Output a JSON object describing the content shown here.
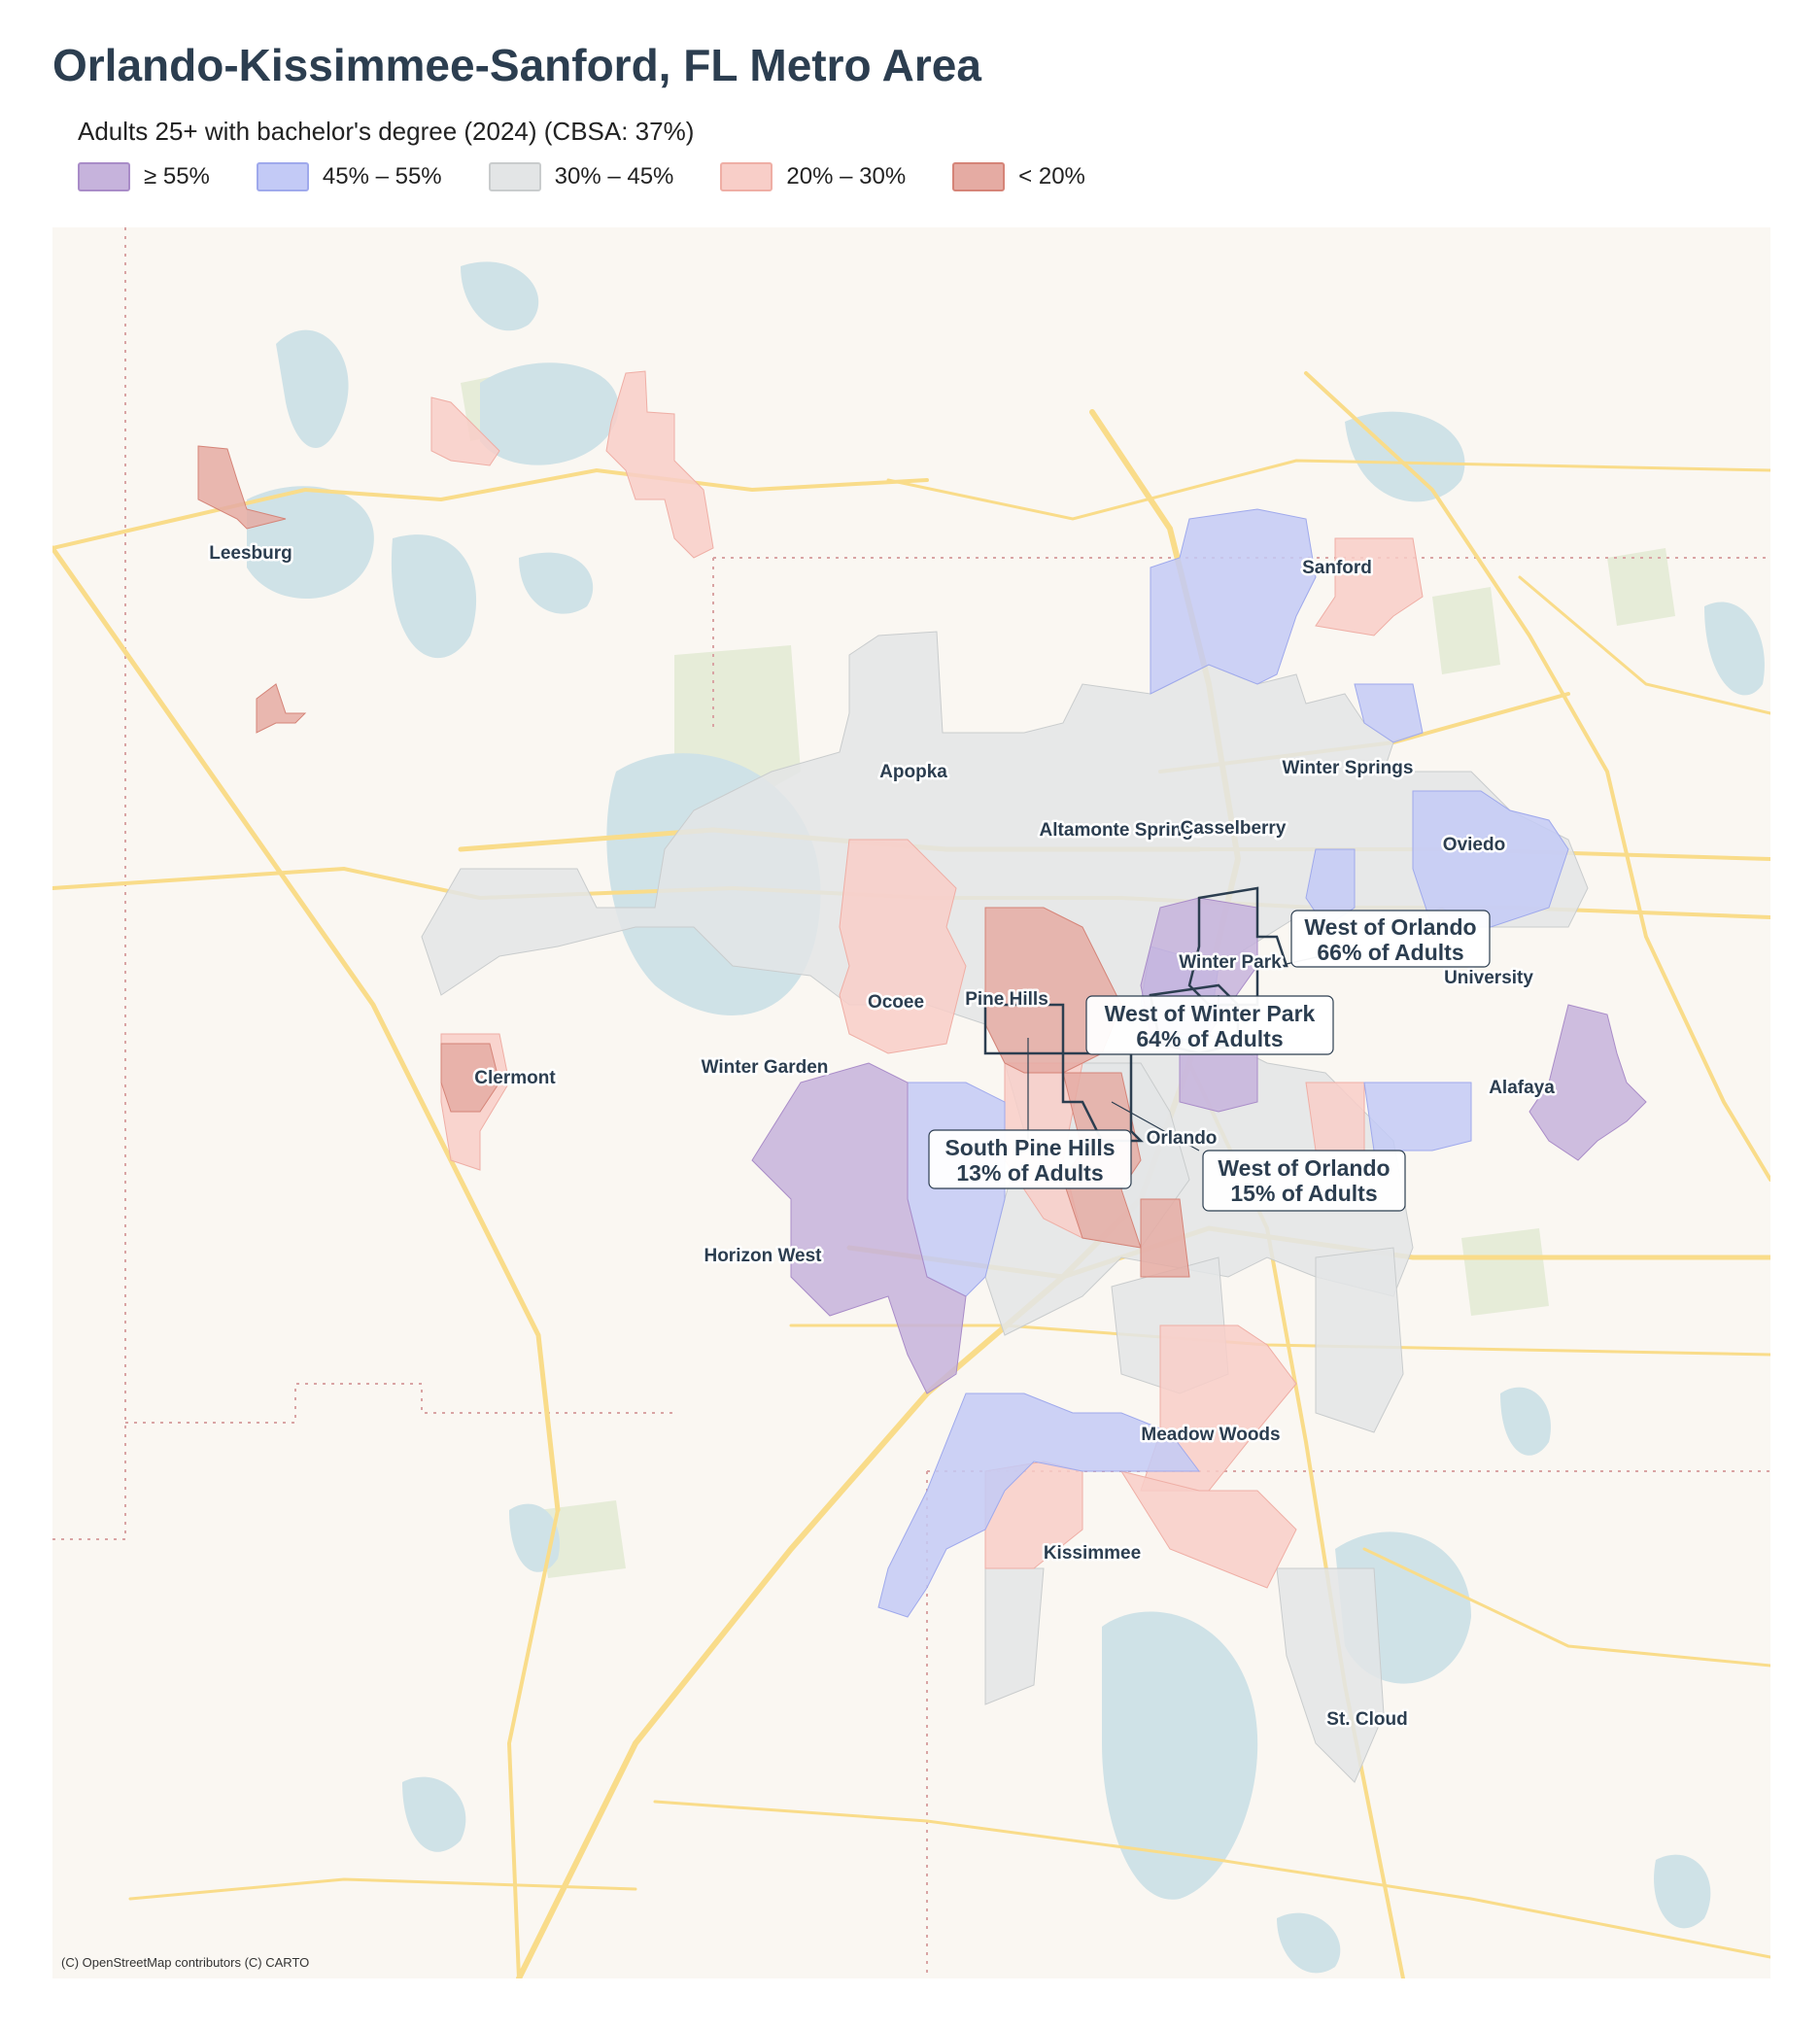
{
  "title": "Orlando-Kissimmee-Sanford, FL Metro Area",
  "subtitle": "Adults 25+ with bachelor's degree (2024)  (CBSA: 37%)",
  "legend": [
    {
      "label": "≥ 55%",
      "fill": "#c6b3dc",
      "border": "#a98cc8"
    },
    {
      "label": "45% – 55%",
      "fill": "#c3caf6",
      "border": "#9fa9ec"
    },
    {
      "label": "30% – 45%",
      "fill": "#e3e5e6",
      "border": "#c9cccd"
    },
    {
      "label": "20% – 30%",
      "fill": "#f8cec8",
      "border": "#efaea5"
    },
    {
      "label": "< 20%",
      "fill": "#e5aba3",
      "border": "#d58478"
    }
  ],
  "colors": {
    "land": "#faf7f2",
    "water": "#cfe2e7",
    "road": "#f9dc8a",
    "park": "#e6ecd8",
    "boundary": "#d9a4a4",
    "highlight": "#2c3e50"
  },
  "places": {
    "leesburg": "Leesburg",
    "sanford": "Sanford",
    "apopka": "Apopka",
    "winter_springs": "Winter Springs",
    "altamonte_springs": "Altamonte Springs",
    "casselberry": "Casselberry",
    "oviedo": "Oviedo",
    "winter_park": "Winter Park",
    "university": "University",
    "ocoee": "Ocoee",
    "pine_hills": "Pine Hills",
    "clermont": "Clermont",
    "winter_garden": "Winter Garden",
    "alafaya": "Alafaya",
    "orlando": "Orlando",
    "horizon_west": "Horizon West",
    "meadow_woods": "Meadow Woods",
    "kissimmee": "Kissimmee",
    "st_cloud": "St. Cloud"
  },
  "callouts": [
    {
      "name": "West of Orlando",
      "value": "66% of Adults"
    },
    {
      "name": "West of Winter Park",
      "value": "64% of Adults"
    },
    {
      "name": "South Pine Hills",
      "value": "13% of Adults"
    },
    {
      "name": "West of Orlando",
      "value": "15% of Adults"
    }
  ],
  "attribution": "(C) OpenStreetMap contributors (C) CARTO"
}
